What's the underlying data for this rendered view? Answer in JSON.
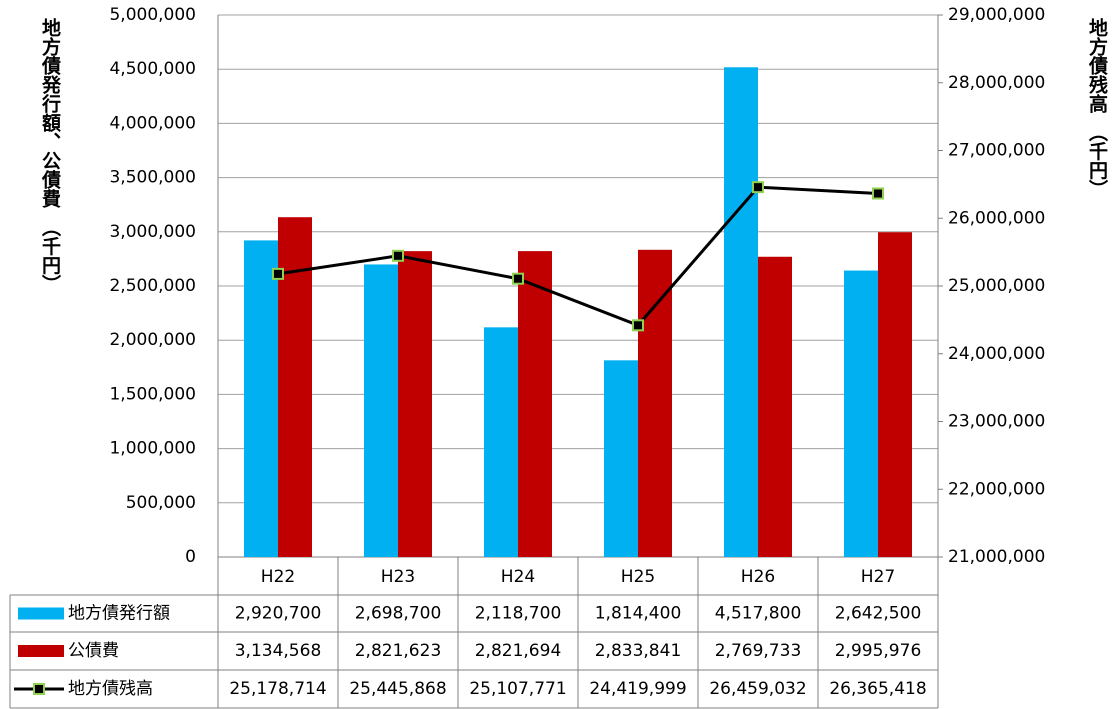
{
  "chart_data": {
    "type": "bar_line",
    "y_label": "地方債発行額、公債費　（千円）",
    "y2_label": "地方債残高　（千円）",
    "categories": [
      "H22",
      "H23",
      "H24",
      "H25",
      "H26",
      "H27"
    ],
    "ylim": [
      0,
      5000000
    ],
    "yticks": [
      0,
      {
        "value": 500000,
        "label": "500,000"
      },
      {
        "value": 1000000,
        "label": "1,000,000"
      },
      {
        "value": 1500000,
        "label": "1,500,000"
      },
      {
        "value": 2000000,
        "label": "2,000,000"
      },
      {
        "value": 2500000,
        "label": "2,500,000"
      },
      {
        "value": 3000000,
        "label": "3,000,000"
      },
      {
        "value": 3500000,
        "label": "3,500,000"
      },
      {
        "value": 4000000,
        "label": "4,000,000"
      },
      {
        "value": 4500000,
        "label": "4,500,000"
      },
      {
        "value": 5000000,
        "label": "5,000,000"
      }
    ],
    "y2lim": [
      21000000,
      29000000
    ],
    "y2ticks": [
      {
        "value": 21000000,
        "label": "21,000,000"
      },
      {
        "value": 22000000,
        "label": "22,000,000"
      },
      {
        "value": 23000000,
        "label": "23,000,000"
      },
      {
        "value": 24000000,
        "label": "24,000,000"
      },
      {
        "value": 25000000,
        "label": "25,000,000"
      },
      {
        "value": 26000000,
        "label": "26,000,000"
      },
      {
        "value": 27000000,
        "label": "27,000,000"
      },
      {
        "value": 28000000,
        "label": "28,000,000"
      },
      {
        "value": 29000000,
        "label": "29,000,000"
      }
    ],
    "grid": true,
    "series": [
      {
        "name": "地方債発行額",
        "type": "bar",
        "color": "#00b0f0",
        "values": [
          2920700,
          2698700,
          2118700,
          1814400,
          4517800,
          2642500
        ],
        "value_labels": [
          "2,920,700",
          "2,698,700",
          "2,118,700",
          "1,814,400",
          "4,517,800",
          "2,642,500"
        ]
      },
      {
        "name": "公債費",
        "type": "bar",
        "color": "#c00000",
        "values": [
          3134568,
          2821623,
          2821694,
          2833841,
          2769733,
          2995976
        ],
        "value_labels": [
          "3,134,568",
          "2,821,623",
          "2,821,694",
          "2,833,841",
          "2,769,733",
          "2,995,976"
        ]
      },
      {
        "name": "地方債残高",
        "type": "line",
        "axis": "y2",
        "color": "#000000",
        "marker_color": "#92d050",
        "values": [
          25178714,
          25445868,
          25107771,
          24419999,
          26459032,
          26365418
        ],
        "value_labels": [
          "25,178,714",
          "25,445,868",
          "25,107,771",
          "24,419,999",
          "26,459,032",
          "26,365,418"
        ]
      }
    ]
  }
}
